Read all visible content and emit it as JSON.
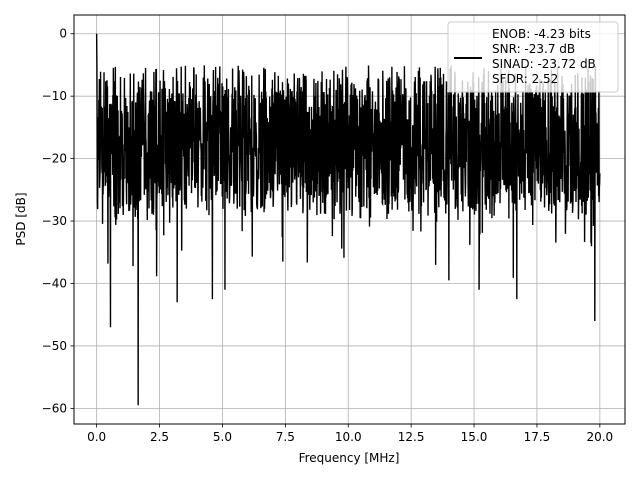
{
  "chart_data": {
    "type": "line",
    "xlabel": "Frequency [MHz]",
    "ylabel": "PSD [dB]",
    "xlim": [
      -0.9,
      21.0
    ],
    "ylim": [
      -62.5,
      3.0
    ],
    "x_ticks": [
      0.0,
      2.5,
      5.0,
      7.5,
      10.0,
      12.5,
      15.0,
      17.5,
      20.0
    ],
    "x_tick_labels": [
      "0.0",
      "2.5",
      "5.0",
      "7.5",
      "10.0",
      "12.5",
      "15.0",
      "17.5",
      "20.0"
    ],
    "y_ticks": [
      0,
      -10,
      -20,
      -30,
      -40,
      -50,
      -60
    ],
    "y_tick_labels": [
      "0",
      "−10",
      "−20",
      "−30",
      "−40",
      "−50",
      "−60"
    ],
    "grid": true,
    "legend_position": "top-right",
    "series": [
      {
        "name": "ENOB: -4.23 bits\nSNR: -23.7 dB\nSINAD: -23.72 dB\nSFDR: 2.52",
        "color": "#000000",
        "x_range": [
          0.0,
          20.0
        ],
        "points": 2048,
        "mean_level": -18,
        "noise_band": [
          -28,
          -8
        ],
        "peak": {
          "x": 0.0,
          "y": 0.0
        },
        "dips": [
          {
            "x": 0.55,
            "y": -47
          },
          {
            "x": 1.65,
            "y": -59.5
          },
          {
            "x": 3.2,
            "y": -43
          },
          {
            "x": 4.6,
            "y": -42.5
          },
          {
            "x": 5.1,
            "y": -41
          },
          {
            "x": 7.4,
            "y": -36.5
          },
          {
            "x": 14.0,
            "y": -39.5
          },
          {
            "x": 15.2,
            "y": -41
          },
          {
            "x": 16.7,
            "y": -42.5
          },
          {
            "x": 19.8,
            "y": -46
          }
        ]
      }
    ]
  }
}
